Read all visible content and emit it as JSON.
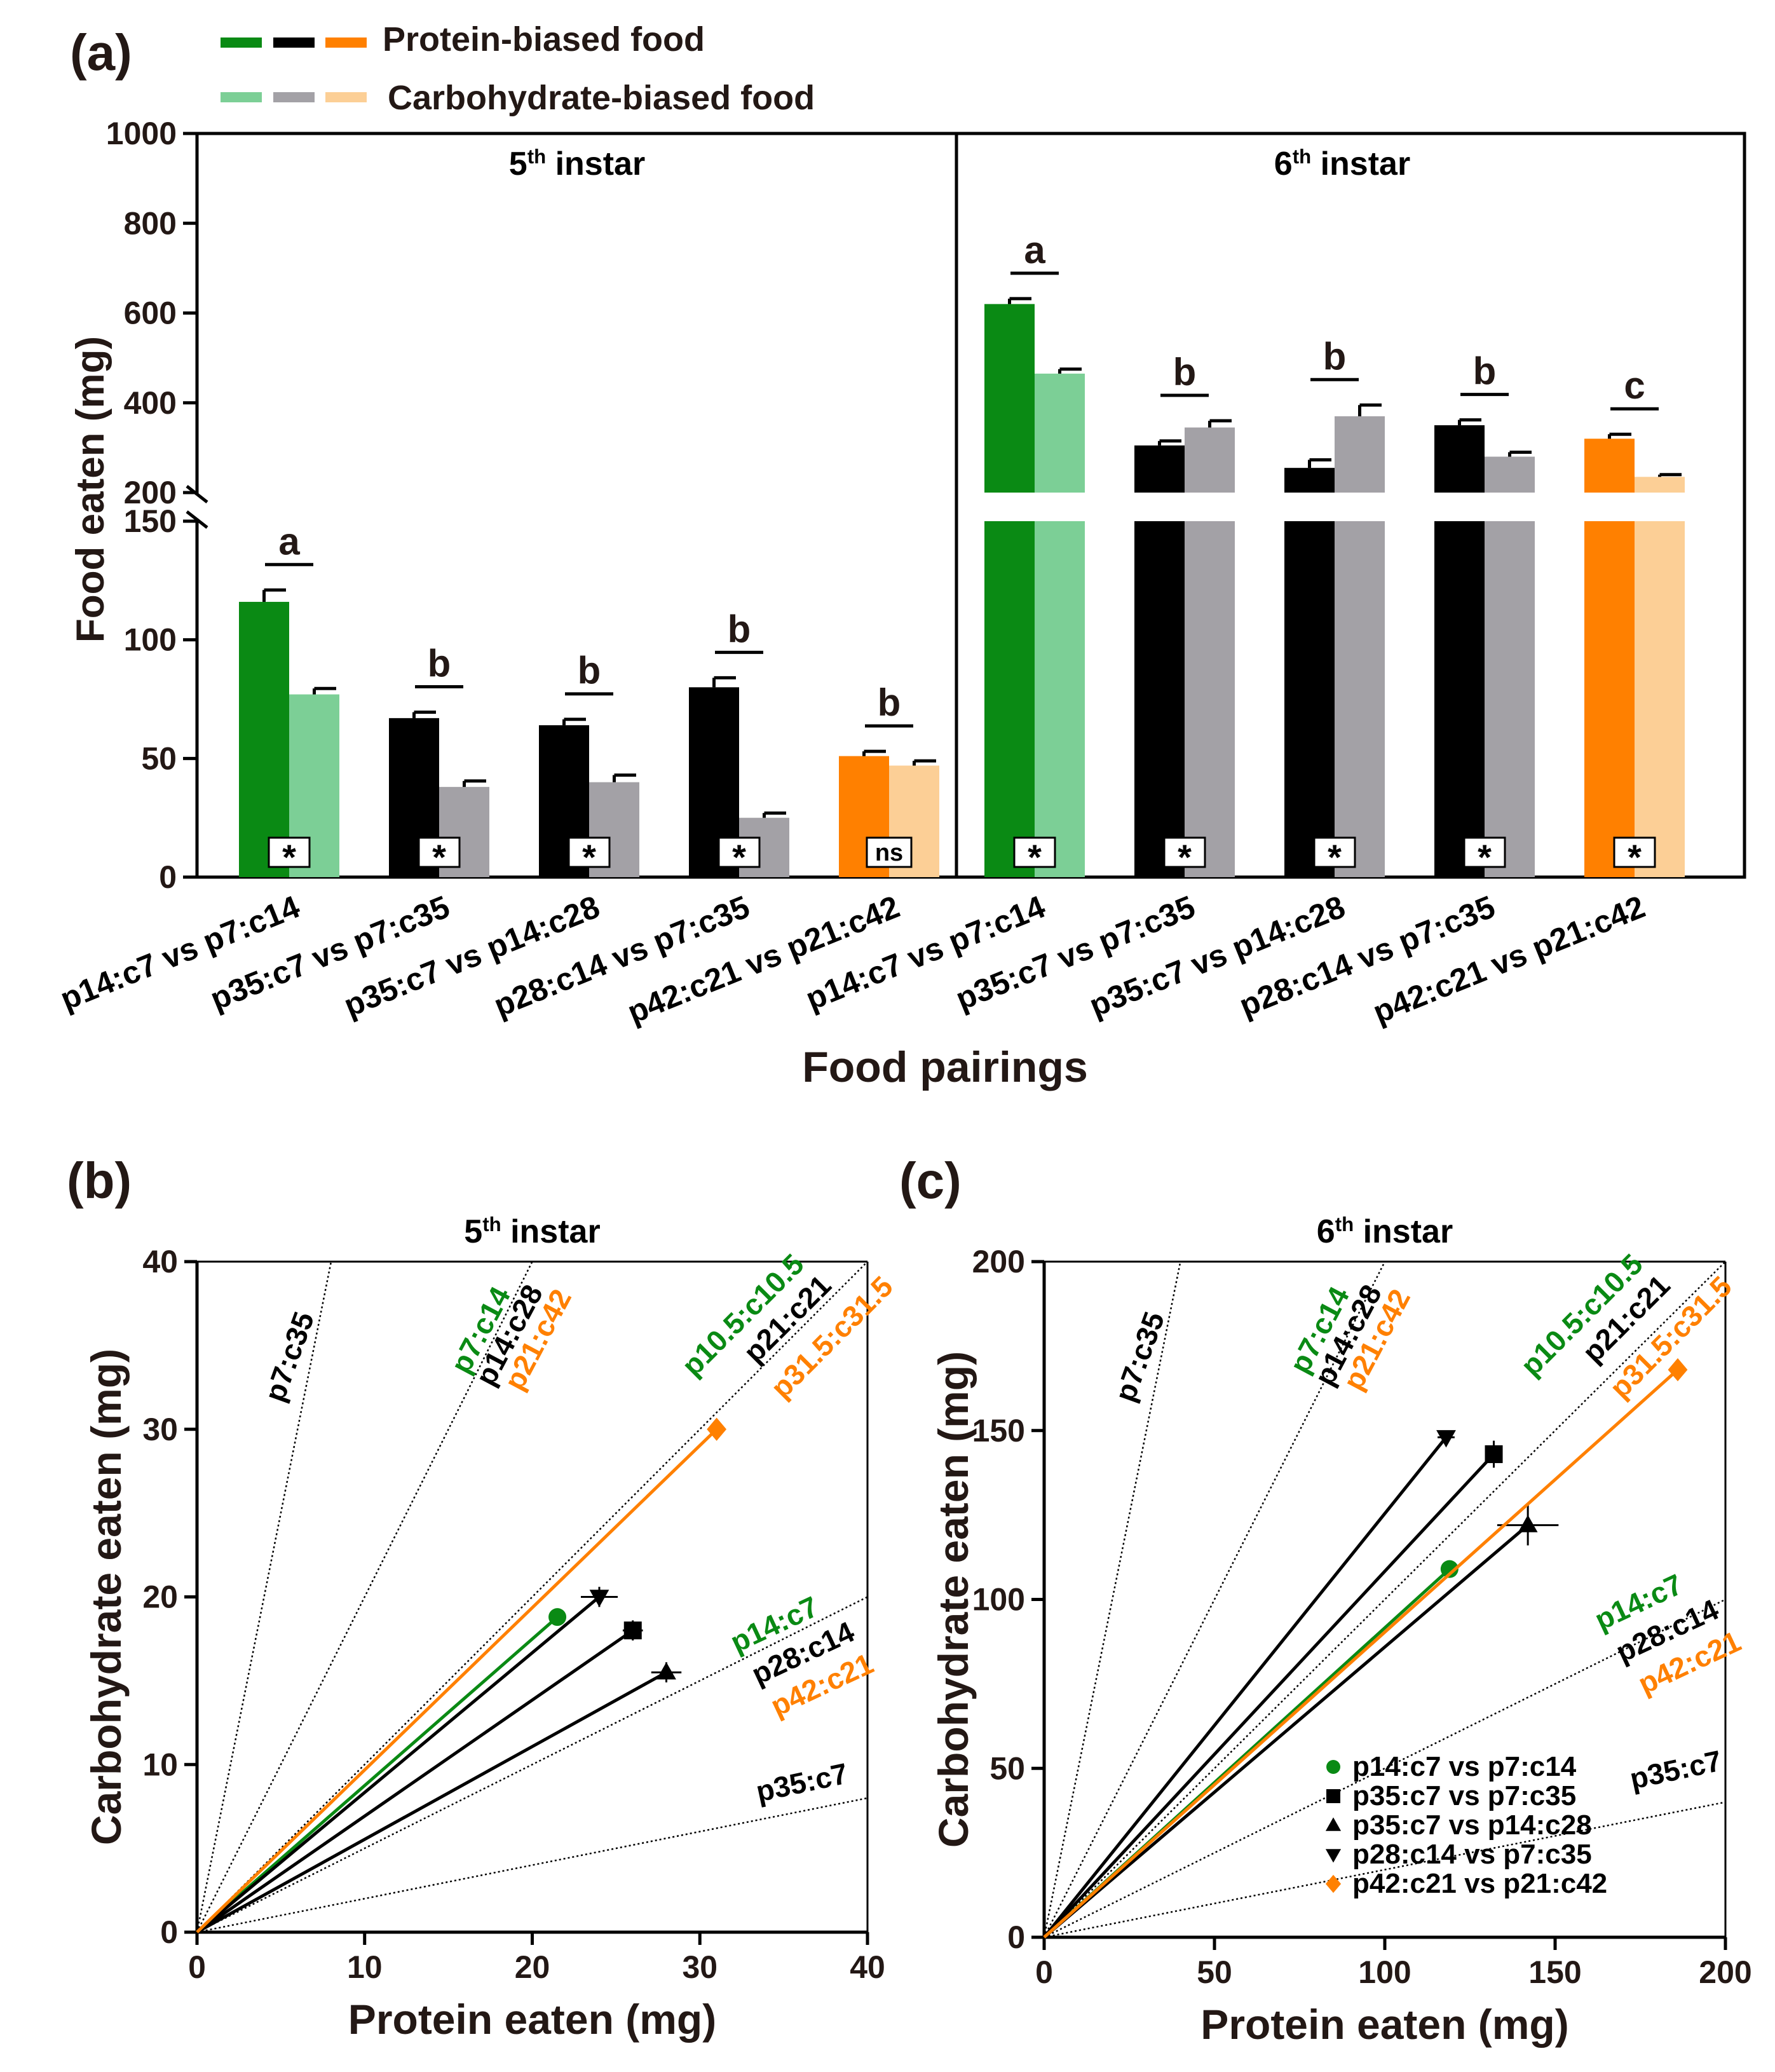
{
  "colors": {
    "green": "#0a8a14",
    "green_light": "#7ccf96",
    "black": "#000000",
    "gray": "#a3a1a6",
    "orange": "#ff8000",
    "orange_light": "#fccf96",
    "text_dark": "#231815"
  },
  "panel_a": {
    "label": "(a)",
    "legend": {
      "protein": "Protein-biased food",
      "carb": "Carbohydrate-biased food"
    },
    "ylabel": "Food eaten (mg)",
    "xlabel": "Food pairings",
    "yticks_lower": [
      "0",
      "50",
      "100",
      "150"
    ],
    "yticks_upper": [
      "200",
      "400",
      "600",
      "800",
      "1000"
    ]
  },
  "panel_b": {
    "label": "(b)"
  },
  "panel_c": {
    "label": "(c)"
  },
  "chart_data": [
    {
      "type": "bar",
      "title": "5th instar",
      "ylabel": "Food eaten (mg)",
      "y_axis_break": [
        150,
        200
      ],
      "ylim": [
        0,
        150
      ],
      "categories": [
        "p14:c7 vs p7:c14",
        "p35:c7 vs p7:c35",
        "p35:c7 vs p14:c28",
        "p28:c14 vs p7:c35",
        "p42:c21 vs p21:c42"
      ],
      "series": [
        {
          "name": "Protein-biased food",
          "values": [
            116,
            67,
            64,
            80,
            51
          ],
          "errors": [
            5,
            2.5,
            2.5,
            4,
            2
          ]
        },
        {
          "name": "Carbohydrate-biased food",
          "values": [
            77,
            38,
            40,
            25,
            47
          ],
          "errors": [
            2.5,
            2.5,
            3,
            2,
            2
          ]
        }
      ],
      "group_colors": [
        "green",
        "black",
        "black",
        "black",
        "orange"
      ],
      "letters": [
        "a",
        "b",
        "b",
        "b",
        "b"
      ],
      "significance": [
        "*",
        "*",
        "*",
        "*",
        "ns"
      ]
    },
    {
      "type": "bar",
      "title": "6th instar",
      "ylabel": "Food eaten (mg)",
      "y_axis_break": [
        150,
        200
      ],
      "ylim": [
        200,
        1000
      ],
      "categories": [
        "p14:c7 vs p7:c14",
        "p35:c7 vs p7:c35",
        "p35:c7 vs p14:c28",
        "p28:c14 vs p7:c35",
        "p42:c21 vs p21:c42"
      ],
      "series": [
        {
          "name": "Protein-biased food",
          "values": [
            620,
            305,
            255,
            350,
            320
          ],
          "errors": [
            12,
            10,
            18,
            12,
            10
          ]
        },
        {
          "name": "Carbohydrate-biased food",
          "values": [
            465,
            345,
            370,
            280,
            235
          ],
          "errors": [
            10,
            15,
            25,
            10,
            5
          ]
        }
      ],
      "group_colors": [
        "green",
        "black",
        "black",
        "black",
        "orange"
      ],
      "letters": [
        "a",
        "b",
        "b",
        "b",
        "c"
      ],
      "significance": [
        "*",
        "*",
        "*",
        "*",
        "*"
      ]
    },
    {
      "type": "scatter",
      "title": "5th instar",
      "xlabel": "Protein eaten (mg)",
      "ylabel": "Carbohydrate eaten (mg)",
      "xlim": [
        0,
        40
      ],
      "ylim": [
        0,
        40
      ],
      "xticks": [
        "0",
        "10",
        "20",
        "30",
        "40"
      ],
      "yticks": [
        "0",
        "10",
        "20",
        "30",
        "40"
      ],
      "rails": [
        {
          "ratio": 5,
          "labels": [
            {
              "text": "p7:c35",
              "color": "black"
            }
          ]
        },
        {
          "ratio": 2,
          "labels": [
            {
              "text": "p7:c14",
              "color": "green"
            },
            {
              "text": "p14:c28",
              "color": "black"
            },
            {
              "text": "p21:c42",
              "color": "orange"
            }
          ]
        },
        {
          "ratio": 1,
          "labels": [
            {
              "text": "p10.5:c10.5",
              "color": "green"
            },
            {
              "text": "p21:c21",
              "color": "black"
            },
            {
              "text": "p31.5:c31.5",
              "color": "orange"
            }
          ]
        },
        {
          "ratio": 0.5,
          "labels": [
            {
              "text": "p14:c7",
              "color": "green"
            },
            {
              "text": "p28:c14",
              "color": "black"
            },
            {
              "text": "p42:c21",
              "color": "orange"
            }
          ]
        },
        {
          "ratio": 0.2,
          "labels": [
            {
              "text": "p35:c7",
              "color": "black"
            }
          ]
        }
      ],
      "points": [
        {
          "name": "p14:c7 vs p7:c14",
          "x": 21.5,
          "y": 18.8,
          "xerr": 0.4,
          "yerr": 0.3,
          "marker": "circle",
          "color": "green"
        },
        {
          "name": "p35:c7 vs p7:c35",
          "x": 26,
          "y": 18,
          "xerr": 0.6,
          "yerr": 0.6,
          "marker": "square",
          "color": "black"
        },
        {
          "name": "p35:c7 vs p14:c28",
          "x": 28,
          "y": 15.5,
          "xerr": 0.9,
          "yerr": 0.6,
          "marker": "triangle-up",
          "color": "black"
        },
        {
          "name": "p28:c14 vs p7:c35",
          "x": 24,
          "y": 20,
          "xerr": 1.1,
          "yerr": 0.6,
          "marker": "triangle-down",
          "color": "black"
        },
        {
          "name": "p42:c21 vs p21:c42",
          "x": 31,
          "y": 30,
          "xerr": 0.4,
          "yerr": 0.5,
          "marker": "diamond",
          "color": "orange"
        }
      ]
    },
    {
      "type": "scatter",
      "title": "6th instar",
      "xlabel": "Protein eaten (mg)",
      "ylabel": "Carbohydrate eaten (mg)",
      "xlim": [
        0,
        200
      ],
      "ylim": [
        0,
        200
      ],
      "xticks": [
        "0",
        "50",
        "100",
        "150",
        "200"
      ],
      "yticks": [
        "0",
        "50",
        "100",
        "150",
        "200"
      ],
      "rails": [
        {
          "ratio": 5,
          "labels": [
            {
              "text": "p7:c35",
              "color": "black"
            }
          ]
        },
        {
          "ratio": 2,
          "labels": [
            {
              "text": "p7:c14",
              "color": "green"
            },
            {
              "text": "p14:c28",
              "color": "black"
            },
            {
              "text": "p21:c42",
              "color": "orange"
            }
          ]
        },
        {
          "ratio": 1,
          "labels": [
            {
              "text": "p10.5:c10.5",
              "color": "green"
            },
            {
              "text": "p21:c21",
              "color": "black"
            },
            {
              "text": "p31.5:c31.5",
              "color": "orange"
            }
          ]
        },
        {
          "ratio": 0.5,
          "labels": [
            {
              "text": "p14:c7",
              "color": "green"
            },
            {
              "text": "p28:c14",
              "color": "black"
            },
            {
              "text": "p42:c21",
              "color": "orange"
            }
          ]
        },
        {
          "ratio": 0.2,
          "labels": [
            {
              "text": "p35:c7",
              "color": "black"
            }
          ]
        }
      ],
      "points": [
        {
          "name": "p14:c7 vs p7:c14",
          "x": 119,
          "y": 109,
          "xerr": 1.5,
          "yerr": 1.5,
          "marker": "circle",
          "color": "green"
        },
        {
          "name": "p35:c7 vs p7:c35",
          "x": 132,
          "y": 143,
          "xerr": 2.5,
          "yerr": 4,
          "marker": "square",
          "color": "black"
        },
        {
          "name": "p35:c7 vs p14:c28",
          "x": 142,
          "y": 122,
          "xerr": 9,
          "yerr": 6,
          "marker": "triangle-up",
          "color": "black"
        },
        {
          "name": "p28:c14 vs p7:c35",
          "x": 118,
          "y": 148,
          "xerr": 2.5,
          "yerr": 2,
          "marker": "triangle-down",
          "color": "black"
        },
        {
          "name": "p42:c21 vs p21:c42",
          "x": 186,
          "y": 168,
          "xerr": 1.5,
          "yerr": 1.5,
          "marker": "diamond",
          "color": "orange"
        }
      ],
      "legend": [
        {
          "label": "p14:c7 vs p7:c14",
          "marker": "circle",
          "color": "green"
        },
        {
          "label": "p35:c7 vs p7:c35",
          "marker": "square",
          "color": "black"
        },
        {
          "label": "p35:c7 vs p14:c28",
          "marker": "triangle-up",
          "color": "black"
        },
        {
          "label": "p28:c14 vs p7:c35",
          "marker": "triangle-down",
          "color": "black"
        },
        {
          "label": "p42:c21 vs p21:c42",
          "marker": "diamond",
          "color": "orange"
        }
      ]
    }
  ]
}
